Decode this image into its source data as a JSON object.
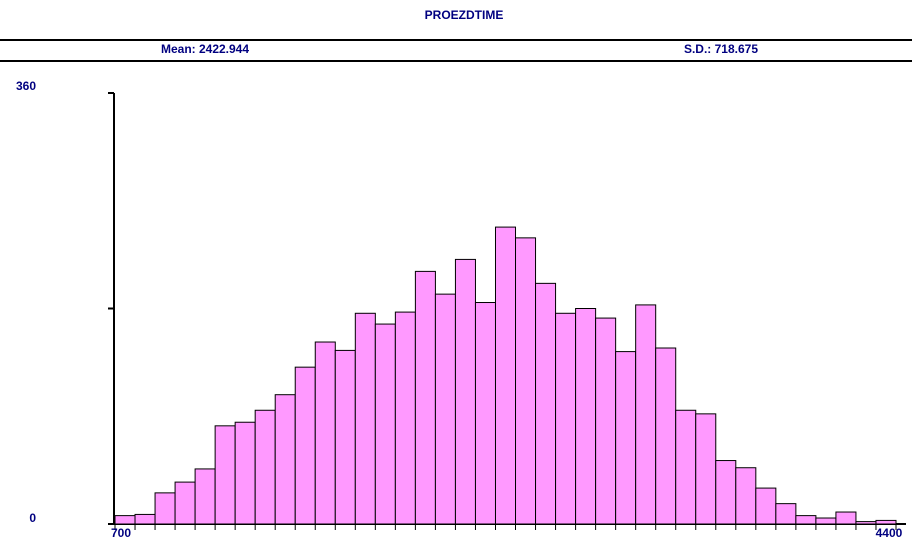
{
  "chart_data": {
    "type": "histogram",
    "title": "PROEZDTIME",
    "stats": [
      "Mean: 2422.944",
      "S.D.: 718.675"
    ],
    "bins": [
      700,
      795,
      890,
      985,
      1080,
      1175,
      1270,
      1365,
      1460,
      1555,
      1650,
      1745,
      1840,
      1935,
      2030,
      2125,
      2220,
      2315,
      2410,
      2505,
      2600,
      2695,
      2790,
      2885,
      2980,
      3075,
      3170,
      3265,
      3360,
      3455,
      3550,
      3645,
      3740,
      3835,
      3930,
      4025,
      4120,
      4215,
      4310,
      4405
    ],
    "values": [
      7,
      8,
      26,
      35,
      46,
      82,
      85,
      95,
      108,
      131,
      152,
      145,
      176,
      167,
      177,
      211,
      192,
      221,
      185,
      248,
      239,
      201,
      176,
      180,
      172,
      144,
      183,
      147,
      95,
      92,
      53,
      47,
      30,
      17,
      7,
      5,
      10,
      2,
      3
    ],
    "color": "#ff99ff",
    "xlim": [
      700,
      4405
    ],
    "xticks": [
      700,
      4400
    ],
    "ylim": [
      0,
      360
    ],
    "yticks": [
      0,
      {
        "value": 180,
        "label": null
      },
      360
    ]
  }
}
